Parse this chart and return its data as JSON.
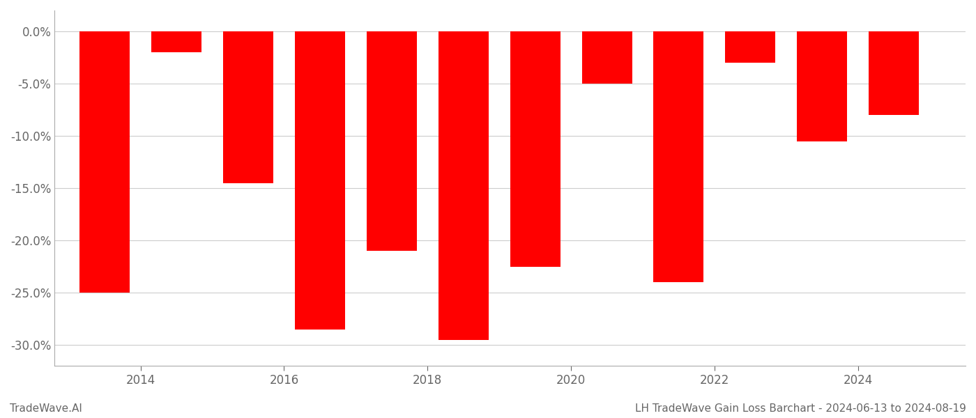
{
  "years": [
    2013,
    2014,
    2015,
    2016,
    2017,
    2018,
    2019,
    2020,
    2021,
    2022,
    2023,
    2024
  ],
  "values": [
    -0.25,
    -0.02,
    -0.145,
    -0.285,
    -0.21,
    -0.295,
    -0.225,
    -0.05,
    -0.24,
    -0.03,
    -0.105,
    -0.08
  ],
  "bar_color": "#ff0000",
  "ylim": [
    -0.32,
    0.02
  ],
  "yticks": [
    0.0,
    -0.05,
    -0.1,
    -0.15,
    -0.2,
    -0.25,
    -0.3
  ],
  "xlim": [
    2012.3,
    2025.0
  ],
  "xticks": [
    2013.5,
    2015.5,
    2017.5,
    2019.5,
    2021.5,
    2023.5
  ],
  "xticklabels": [
    "2014",
    "2016",
    "2018",
    "2020",
    "2022",
    "2024"
  ],
  "xlabel": "",
  "ylabel": "",
  "footer_left": "TradeWave.AI",
  "footer_right": "LH TradeWave Gain Loss Barchart - 2024-06-13 to 2024-08-19",
  "grid_color": "#cccccc",
  "bar_width": 0.7,
  "background_color": "#ffffff",
  "spine_color": "#aaaaaa",
  "tick_color": "#666666",
  "footer_fontsize": 11,
  "tick_fontsize": 12
}
